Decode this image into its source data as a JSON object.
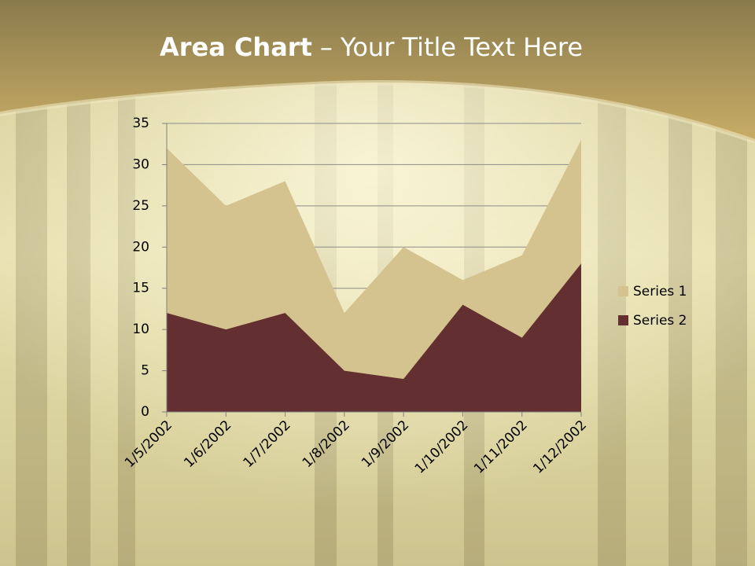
{
  "chart_data": {
    "type": "area",
    "title": {
      "bold": "Area Chart",
      "rest": "– Your Title Text Here"
    },
    "categories": [
      "1/5/2002",
      "1/6/2002",
      "1/7/2002",
      "1/8/2002",
      "1/9/2002",
      "1/10/2002",
      "1/11/2002",
      "1/12/2002"
    ],
    "series": [
      {
        "name": "Series 1",
        "color": "#d5c38f",
        "values": [
          32,
          25,
          28,
          12,
          20,
          16,
          19,
          33
        ]
      },
      {
        "name": "Series 2",
        "color": "#632f31",
        "values": [
          12,
          10,
          12,
          5,
          4,
          13,
          9,
          18
        ]
      }
    ],
    "ylim": [
      0,
      35
    ],
    "yticks": [
      0,
      5,
      10,
      15,
      20,
      25,
      30,
      35
    ],
    "grid": true,
    "legend": "right"
  }
}
